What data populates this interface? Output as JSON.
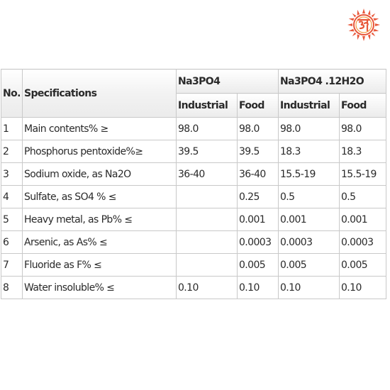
{
  "logo": {
    "icon": "sun-om-logo-icon",
    "colors": {
      "primary": "#e8573a",
      "secondary": "#f28c28"
    }
  },
  "table": {
    "headers": {
      "no": "No.",
      "specifications": "Specifications",
      "groups": [
        "Na3PO4",
        "Na3PO4 .12H2O"
      ],
      "grades": [
        "Industrial",
        "Food",
        "Industrial",
        "Food"
      ]
    },
    "rows": [
      {
        "no": "1",
        "spec": "Main contents% ≥",
        "values": [
          "98.0",
          "98.0",
          "98.0",
          "98.0"
        ]
      },
      {
        "no": "2",
        "spec": "Phosphorus pentoxide%≥",
        "values": [
          "39.5",
          "39.5",
          "18.3",
          "18.3"
        ]
      },
      {
        "no": "3",
        "spec": "Sodium oxide, as Na2O",
        "values": [
          "36-40",
          "36-40",
          "15.5-19",
          "15.5-19"
        ]
      },
      {
        "no": "4",
        "spec": "Sulfate, as SO4 % ≤",
        "values": [
          "",
          "0.25",
          "0.5",
          "0.5"
        ]
      },
      {
        "no": "5",
        "spec": "Heavy metal, as Pb% ≤",
        "values": [
          "",
          "0.001",
          "0.001",
          "0.001"
        ]
      },
      {
        "no": "6",
        "spec": "Arsenic, as As% ≤",
        "values": [
          "",
          "0.0003",
          "0.0003",
          "0.0003"
        ]
      },
      {
        "no": "7",
        "spec": "Fluoride as F% ≤",
        "values": [
          "",
          "0.005",
          "0.005",
          "0.005"
        ]
      },
      {
        "no": "8",
        "spec": "Water insoluble% ≤",
        "values": [
          "0.10",
          "0.10",
          "0.10",
          "0.10"
        ]
      }
    ]
  }
}
